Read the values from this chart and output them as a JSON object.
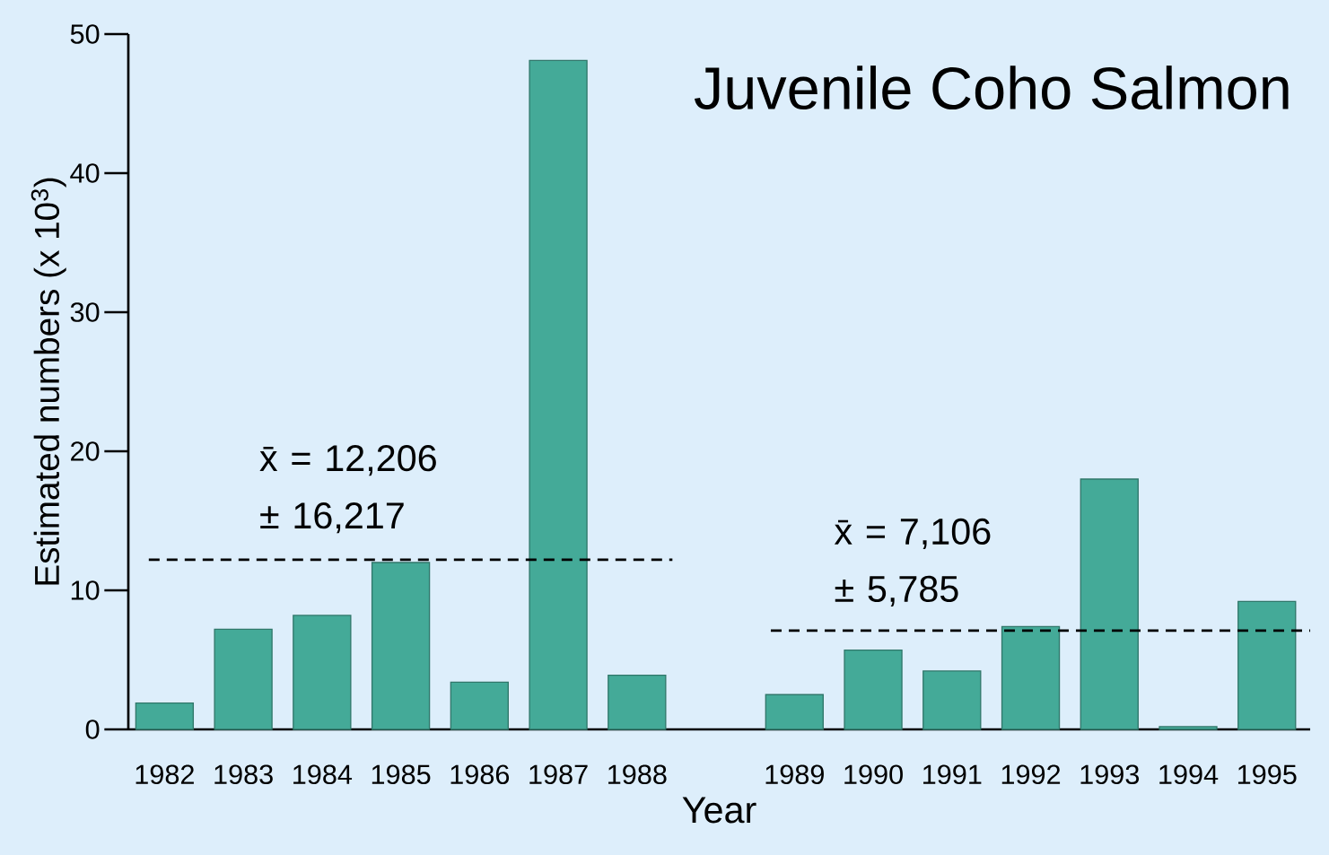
{
  "chart_data": {
    "type": "bar",
    "title": "Juvenile Coho Salmon",
    "xlabel": "Year",
    "ylabel": "Estimated numbers (x 10$^{3}$)",
    "categories": [
      "1982",
      "1983",
      "1984",
      "1985",
      "1986",
      "1987",
      "1988",
      null,
      "1989",
      "1990",
      "1991",
      "1992",
      "1993",
      "1994",
      "1995"
    ],
    "values": [
      1.9,
      7.2,
      8.2,
      12.0,
      3.4,
      48.1,
      3.9,
      null,
      2.5,
      5.7,
      4.2,
      7.4,
      18.0,
      0.2,
      9.2
    ],
    "color": "#44aa98",
    "ylim": [
      0,
      50
    ],
    "yticks": [
      0,
      10,
      20,
      30,
      40,
      50
    ],
    "ref_lines": [
      {
        "axis": "y",
        "value": 12.206,
        "label": "x̄ = 12,206 ± 16,217",
        "color": "#000000",
        "line_style": "dashed"
      },
      {
        "axis": "y",
        "value": 7.106,
        "label": "x̄ = 7,106 ± 5,785",
        "color": "#000000",
        "line_style": "dashed"
      }
    ],
    "grid": false
  }
}
